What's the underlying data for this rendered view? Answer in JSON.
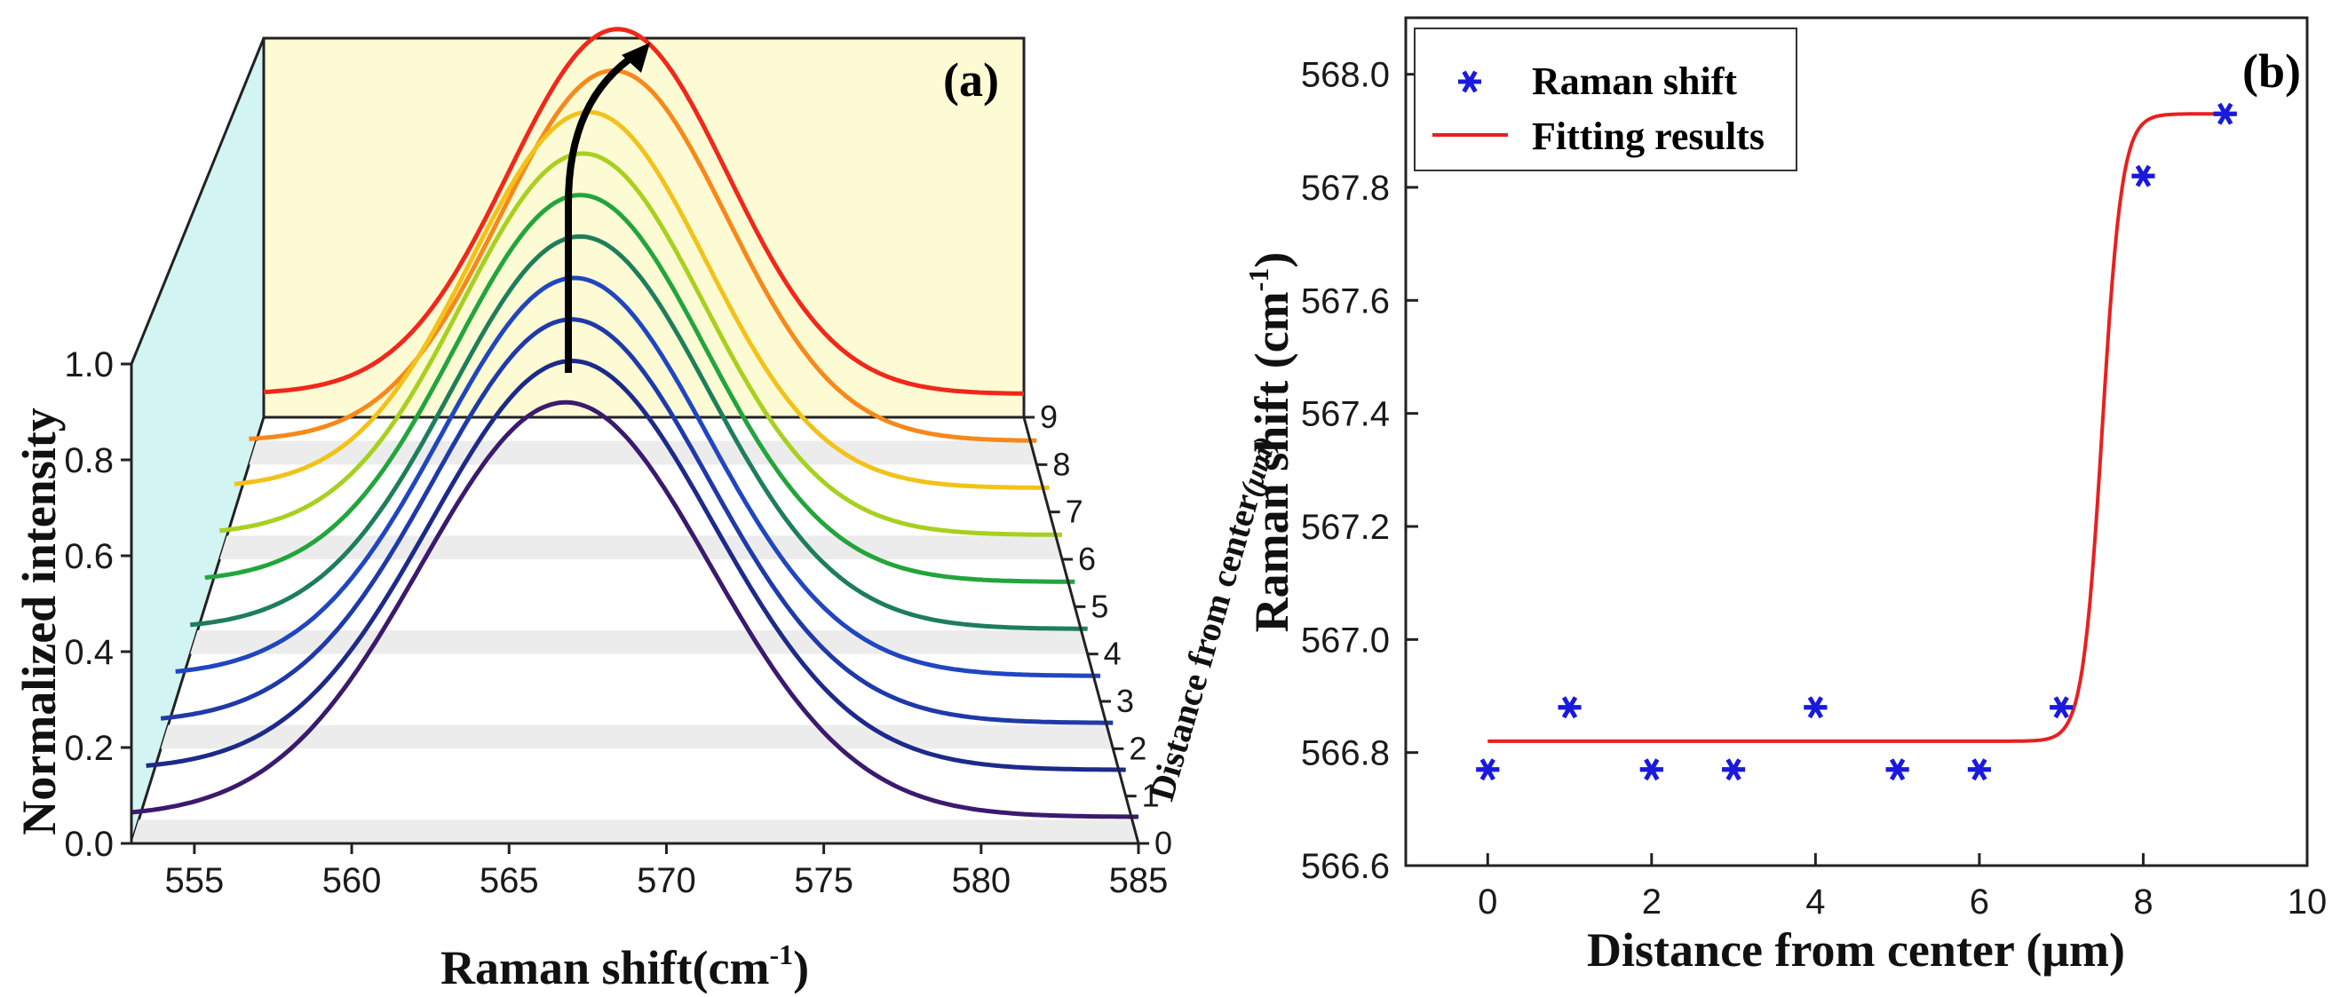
{
  "chart_data": [
    {
      "panel": "(a)",
      "type": "line",
      "xlabel": "Raman shift(cm",
      "xlabel_sup": "-1",
      "xlabel_close": ")",
      "ylabel": "Normalized intensity",
      "zlabel": "Distance from center",
      "zlabel_unit": "(μm)",
      "xlim": [
        553,
        585
      ],
      "xticks": [
        "555",
        "560",
        "565",
        "570",
        "575",
        "580",
        "585"
      ],
      "ylim": [
        0.0,
        1.0
      ],
      "yticks": [
        "0.0",
        "0.2",
        "0.4",
        "0.6",
        "0.8",
        "1.0"
      ],
      "zticks": [
        "0",
        "1",
        "2",
        "3",
        "4",
        "5",
        "6",
        "7",
        "8",
        "9"
      ],
      "arrow": "peak shift direction",
      "series": [
        {
          "distance": 0,
          "peak_center": 566.8,
          "color": "#3b1a6e"
        },
        {
          "distance": 1,
          "peak_center": 566.9,
          "color": "#1c2a8a"
        },
        {
          "distance": 2,
          "peak_center": 566.8,
          "color": "#1f3aa8"
        },
        {
          "distance": 3,
          "peak_center": 566.8,
          "color": "#2046c0"
        },
        {
          "distance": 4,
          "peak_center": 566.9,
          "color": "#1e7e5a"
        },
        {
          "distance": 5,
          "peak_center": 566.8,
          "color": "#22a53c"
        },
        {
          "distance": 6,
          "peak_center": 566.8,
          "color": "#a8d020"
        },
        {
          "distance": 7,
          "peak_center": 566.9,
          "color": "#f2c21a"
        },
        {
          "distance": 8,
          "peak_center": 567.8,
          "color": "#f7881c"
        },
        {
          "distance": 9,
          "peak_center": 567.9,
          "color": "#f0281a"
        }
      ]
    },
    {
      "panel": "(b)",
      "type": "scatter",
      "xlabel": "Distance from center (μm)",
      "ylabel": "Raman shift (cm",
      "ylabel_sup": "-1",
      "ylabel_close": ")",
      "xlim": [
        -1,
        10
      ],
      "ylim": [
        566.6,
        568.1
      ],
      "xticks": [
        "0",
        "2",
        "4",
        "6",
        "8",
        "10"
      ],
      "yticks": [
        "566.6",
        "566.8",
        "567.0",
        "567.2",
        "567.4",
        "567.6",
        "567.8",
        "568.0"
      ],
      "legend_position": "top-left",
      "series": [
        {
          "name": "Raman shift",
          "kind": "marker",
          "color": "#1a1adc",
          "x": [
            0,
            1,
            2,
            3,
            4,
            5,
            6,
            7,
            8,
            9
          ],
          "y": [
            566.77,
            566.88,
            566.77,
            566.77,
            566.88,
            566.77,
            566.77,
            566.88,
            567.82,
            567.93
          ]
        },
        {
          "name": "Fitting results",
          "kind": "line",
          "color": "#e82020",
          "model": "sigmoid",
          "baseline": 566.82,
          "plateau": 567.93,
          "midpoint": 7.5,
          "steepness": 0.12,
          "x_range": [
            0,
            9
          ]
        }
      ]
    }
  ],
  "panel_a": {
    "label": "(a)"
  },
  "panel_b": {
    "label": "(b)"
  }
}
